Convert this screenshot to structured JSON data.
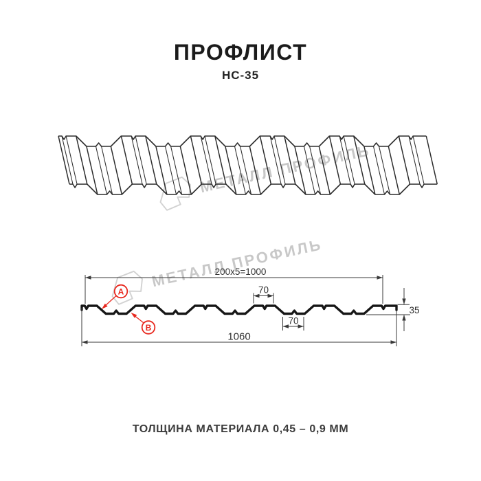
{
  "header": {
    "title": "ПРОФЛИСТ",
    "subtitle": "НС-35"
  },
  "watermark": {
    "text": "МЕТАЛЛ ПРОФИЛЬ",
    "color": "#c8c8c8"
  },
  "dimensions": {
    "working_width": "200x5=1000",
    "rib_top_width": "70",
    "rib_bottom_width": "70",
    "profile_height": "35",
    "total_width": "1060"
  },
  "labels": {
    "a": "А",
    "b": "В",
    "accent_color": "#e8281e"
  },
  "footer": {
    "text": "ТОЛЩИНА МАТЕРИАЛА 0,45 – 0,9 ММ"
  },
  "profile_geometry": {
    "type": "trapezoidal profiled sheet",
    "pitch_mm": 200,
    "rib_height_mm": 35,
    "flange_top_mm": 70,
    "flange_bottom_mm": 70,
    "slope_mm": 30,
    "working_width_mm": 1000,
    "total_width_mm": 1060,
    "notch_centers_mm": [
      16,
      216,
      416,
      616,
      816,
      1016
    ],
    "bump_centers_mm": [
      116,
      316,
      516,
      716,
      916
    ],
    "thickness_range_mm": "0,45 – 0,9"
  }
}
